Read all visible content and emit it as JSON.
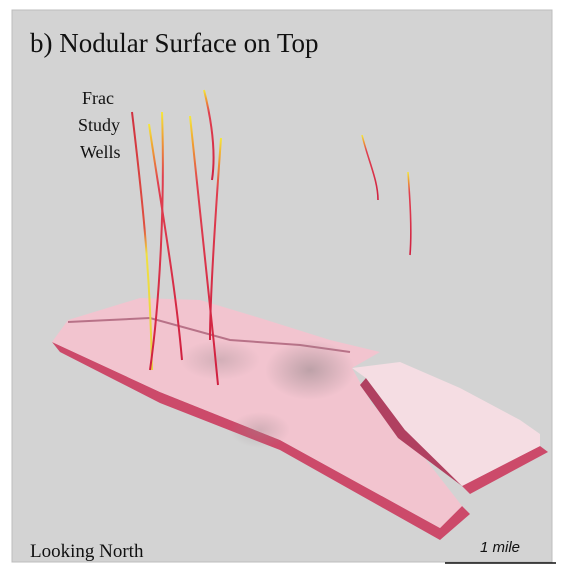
{
  "title": "b) Nodular Surface on Top",
  "well_label": [
    "Frac",
    "Study",
    "Wells"
  ],
  "view_label": "Looking North",
  "scale_label": "1 mile"
}
